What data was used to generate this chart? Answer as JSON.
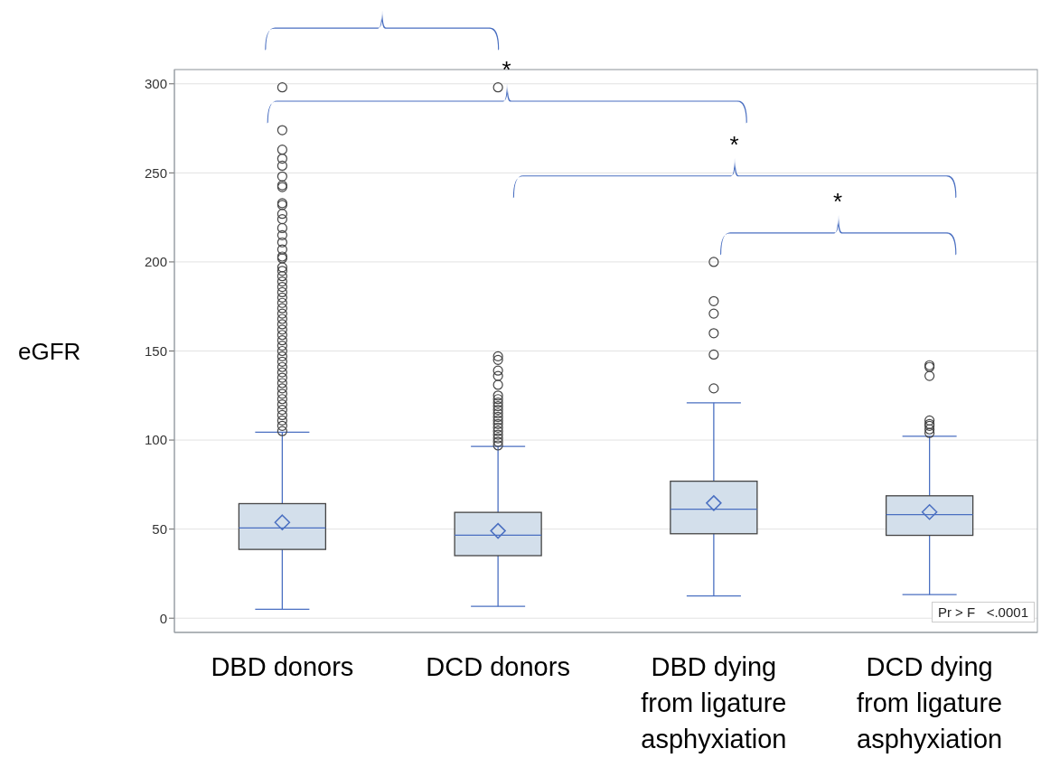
{
  "chart_data": {
    "type": "box",
    "ylabel": "eGFR",
    "categories": [
      "DBD donors",
      "DCD donors",
      "DBD dying from ligature asphyxiation",
      "DCD dying from ligature asphyxiation"
    ],
    "boxes": [
      {
        "low": 5,
        "q1": 38.6,
        "median": 50.6,
        "q3": 64.3,
        "high": 104.4,
        "mean": 53.8,
        "outliers": [
          105,
          108,
          111,
          114,
          117,
          120,
          123,
          126,
          129,
          132,
          135,
          138,
          141,
          144,
          147,
          150,
          153,
          156,
          159,
          162,
          165,
          168,
          171,
          174,
          177,
          180,
          183,
          186,
          189,
          192,
          195,
          197,
          202,
          203,
          207,
          211,
          215,
          219,
          224,
          227,
          232,
          233,
          242,
          243,
          248,
          254,
          258,
          263,
          274,
          298
        ]
      },
      {
        "low": 6.6,
        "q1": 35.1,
        "median": 46.6,
        "q3": 59.4,
        "high": 96.4,
        "mean": 49,
        "outliers": [
          97,
          99,
          101,
          103,
          105,
          107,
          109,
          111,
          113,
          115,
          117,
          119,
          121,
          123,
          125,
          131,
          136,
          139,
          145,
          147,
          298
        ]
      },
      {
        "low": 12.5,
        "q1": 47.4,
        "median": 61.2,
        "q3": 76.9,
        "high": 120.9,
        "mean": 64.6,
        "outliers": [
          129,
          148,
          160,
          171,
          178,
          200
        ]
      },
      {
        "low": 13.2,
        "q1": 46.5,
        "median": 58.1,
        "q3": 68.7,
        "high": 102.1,
        "mean": 59.6,
        "outliers": [
          104,
          106,
          108,
          109,
          111,
          136,
          141,
          142
        ]
      }
    ],
    "color": "#d3dfeb",
    "ylim": [
      -8,
      308
    ],
    "yticks": [
      0,
      50,
      100,
      150,
      200,
      250,
      300
    ],
    "grid": "y",
    "marker": "circle",
    "annotations": [
      "*",
      "*",
      "*",
      "Pr > F   <.0001"
    ]
  }
}
